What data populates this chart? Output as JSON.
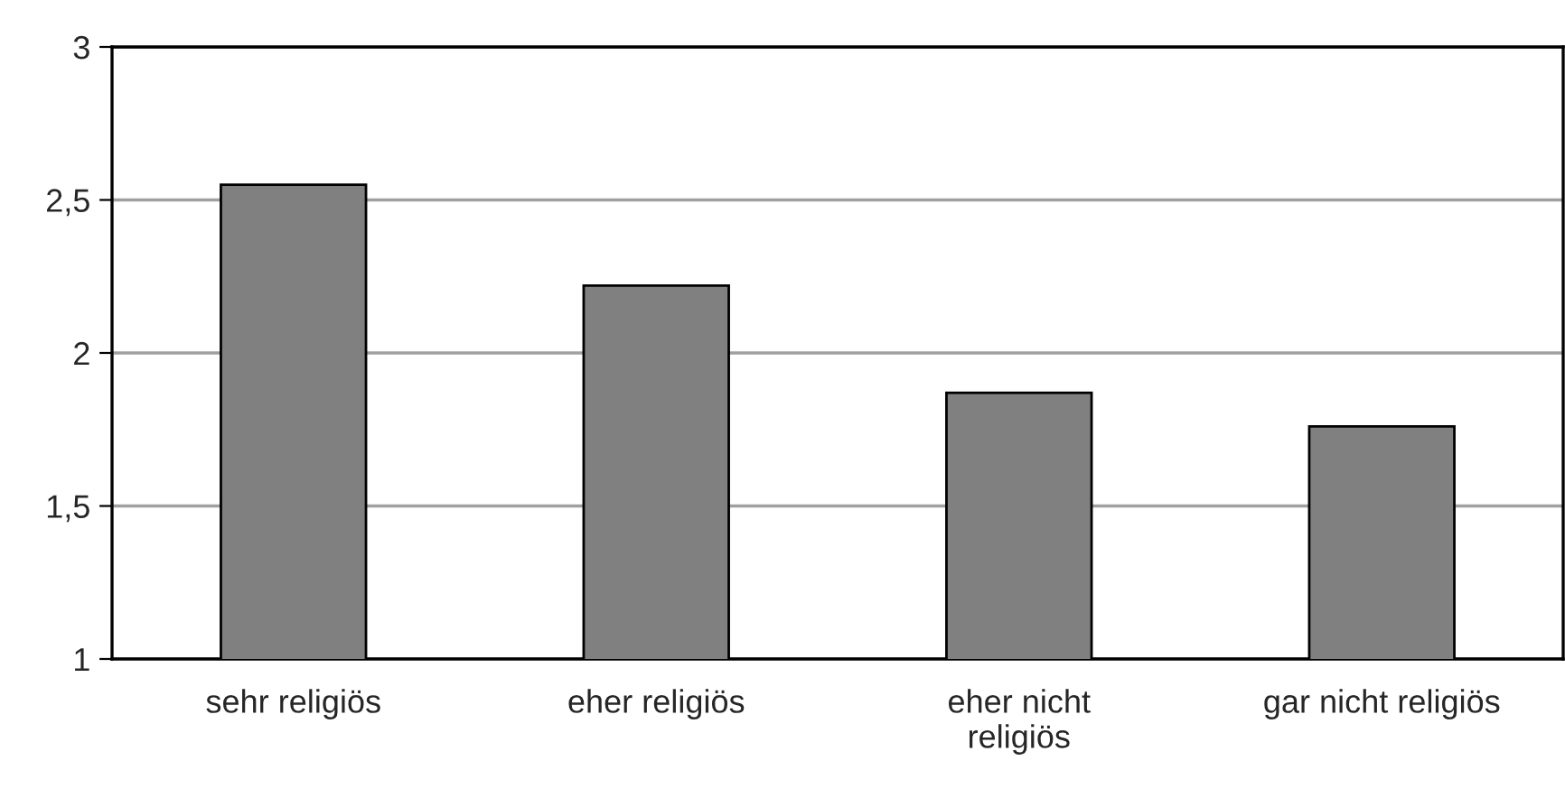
{
  "chart_data": {
    "type": "bar",
    "categories": [
      "sehr religiös",
      "eher religiös",
      "eher nicht religiös",
      "gar nicht religiös"
    ],
    "values": [
      2.55,
      2.22,
      1.87,
      1.76
    ],
    "color": "#808080",
    "ylim": [
      1,
      3
    ],
    "yticks": [
      {
        "value": 1,
        "label": "1"
      },
      {
        "value": 1.5,
        "label": "1,5"
      },
      {
        "value": 2,
        "label": "2"
      },
      {
        "value": 2.5,
        "label": "2,5"
      },
      {
        "value": 3,
        "label": "3"
      }
    ],
    "grid": "y"
  }
}
